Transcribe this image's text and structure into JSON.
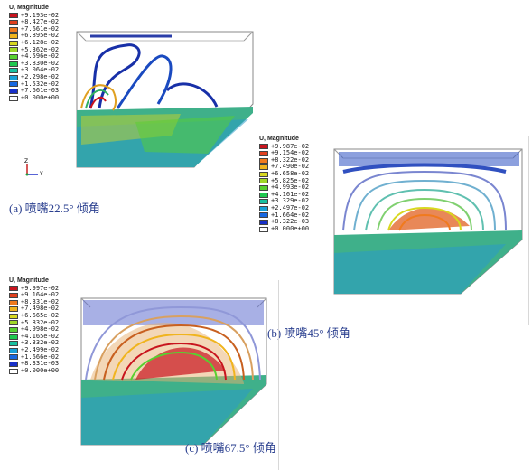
{
  "panels": [
    {
      "caption": "(a) 喷嘴22.5° 倾角",
      "legend_title": "U, Magnitude",
      "legend_values": [
        "+9.193e-02",
        "+8.427e-02",
        "+7.661e-02",
        "+6.895e-02",
        "+6.128e-02",
        "+5.362e-02",
        "+4.596e-02",
        "+3.830e-02",
        "+3.064e-02",
        "+2.298e-02",
        "+1.532e-02",
        "+7.661e-03",
        "+0.000e+00"
      ]
    },
    {
      "caption": "(b) 喷嘴45° 倾角",
      "legend_title": "U, Magnitude",
      "legend_values": [
        "+9.987e-02",
        "+9.154e-02",
        "+8.322e-02",
        "+7.490e-02",
        "+6.658e-02",
        "+5.825e-02",
        "+4.993e-02",
        "+4.161e-02",
        "+3.329e-02",
        "+2.497e-02",
        "+1.664e-02",
        "+8.322e-03",
        "+0.000e+00"
      ]
    },
    {
      "caption": "(c) 喷嘴67.5° 倾角",
      "legend_title": "U, Magnitude",
      "legend_values": [
        "+9.997e-02",
        "+9.164e-02",
        "+8.331e-02",
        "+7.498e-02",
        "+6.665e-02",
        "+5.832e-02",
        "+4.998e-02",
        "+4.165e-02",
        "+3.332e-02",
        "+2.499e-02",
        "+1.666e-02",
        "+8.331e-03",
        "+0.000e+00"
      ]
    }
  ],
  "axis_triad": {
    "x_label": "Y",
    "y_label": "Z"
  },
  "legend_colors": [
    "#c8141e",
    "#e0401e",
    "#f07a1e",
    "#f0b41e",
    "#d8d820",
    "#a0d828",
    "#58d030",
    "#20c850",
    "#18c0a0",
    "#18a0d8",
    "#1868e0",
    "#1830c8",
    "#1818a0"
  ]
}
